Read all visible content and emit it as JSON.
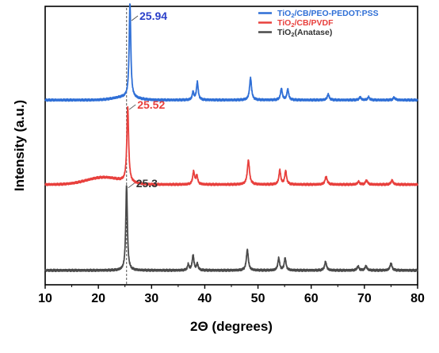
{
  "chart_data": {
    "type": "line",
    "title": "",
    "xlabel": "2Θ (degrees)",
    "ylabel": "Intensity (a.u.)",
    "xlim": [
      10,
      80
    ],
    "x_ticks": [
      "10",
      "20",
      "30",
      "40",
      "50",
      "60",
      "70",
      "80"
    ],
    "y_ticks_shown": false,
    "grid": false,
    "legend_position": "top-right",
    "reference_line_x": 25.3,
    "series": [
      {
        "name_main": "TiO",
        "name_sub": "2",
        "name_rest": "/CB/PEO-PEDOT:PSS",
        "color": "#2f6fd6",
        "baseline": 0.55,
        "peaks": [
          {
            "x": 25.94,
            "h": 6.6,
            "w": 0.18
          },
          {
            "x": 37.8,
            "h": 0.55,
            "w": 0.18
          },
          {
            "x": 38.6,
            "h": 1.25,
            "w": 0.2
          },
          {
            "x": 48.6,
            "h": 1.55,
            "w": 0.22
          },
          {
            "x": 54.4,
            "h": 0.8,
            "w": 0.2
          },
          {
            "x": 55.6,
            "h": 0.75,
            "w": 0.2
          },
          {
            "x": 63.2,
            "h": 0.4,
            "w": 0.22
          },
          {
            "x": 69.2,
            "h": 0.2,
            "w": 0.22
          },
          {
            "x": 70.8,
            "h": 0.2,
            "w": 0.22
          },
          {
            "x": 75.6,
            "h": 0.18,
            "w": 0.22
          }
        ],
        "humps": [
          {
            "x": 25.0,
            "h": 0.2,
            "w": 3.0
          }
        ]
      },
      {
        "name_main": "TiO",
        "name_sub": "2",
        "name_rest": "/CB/PVDF",
        "color": "#e8403d",
        "baseline": 0.3,
        "peaks": [
          {
            "x": 25.52,
            "h": 5.3,
            "w": 0.2
          },
          {
            "x": 37.9,
            "h": 0.9,
            "w": 0.2
          },
          {
            "x": 38.5,
            "h": 0.6,
            "w": 0.2
          },
          {
            "x": 48.2,
            "h": 1.7,
            "w": 0.24
          },
          {
            "x": 54.1,
            "h": 1.0,
            "w": 0.2
          },
          {
            "x": 55.2,
            "h": 0.95,
            "w": 0.2
          },
          {
            "x": 62.8,
            "h": 0.55,
            "w": 0.24
          },
          {
            "x": 68.9,
            "h": 0.2,
            "w": 0.22
          },
          {
            "x": 70.4,
            "h": 0.3,
            "w": 0.22
          },
          {
            "x": 75.2,
            "h": 0.3,
            "w": 0.22
          }
        ],
        "humps": [
          {
            "x": 21.0,
            "h": 0.5,
            "w": 4.5
          }
        ]
      },
      {
        "name_main": "TiO",
        "name_sub": "2",
        "name_rest": "(Anatase)",
        "color": "#4a4a4a",
        "baseline": 0.12,
        "peaks": [
          {
            "x": 25.3,
            "h": 6.0,
            "w": 0.18
          },
          {
            "x": 36.9,
            "h": 0.4,
            "w": 0.18
          },
          {
            "x": 37.8,
            "h": 1.05,
            "w": 0.2
          },
          {
            "x": 38.6,
            "h": 0.45,
            "w": 0.18
          },
          {
            "x": 48.0,
            "h": 1.45,
            "w": 0.22
          },
          {
            "x": 53.9,
            "h": 0.85,
            "w": 0.2
          },
          {
            "x": 55.1,
            "h": 0.85,
            "w": 0.2
          },
          {
            "x": 62.7,
            "h": 0.6,
            "w": 0.22
          },
          {
            "x": 68.8,
            "h": 0.28,
            "w": 0.22
          },
          {
            "x": 70.3,
            "h": 0.3,
            "w": 0.22
          },
          {
            "x": 75.0,
            "h": 0.5,
            "w": 0.22
          }
        ],
        "humps": []
      }
    ],
    "annotations": [
      {
        "text": "25.94",
        "x": 25.94,
        "color": "#2a3fc9",
        "series": 0
      },
      {
        "text": "25.52",
        "x": 25.52,
        "color": "#e8403d",
        "series": 1
      },
      {
        "text": "25.3",
        "x": 25.3,
        "color": "#333333",
        "series": 2
      }
    ]
  }
}
